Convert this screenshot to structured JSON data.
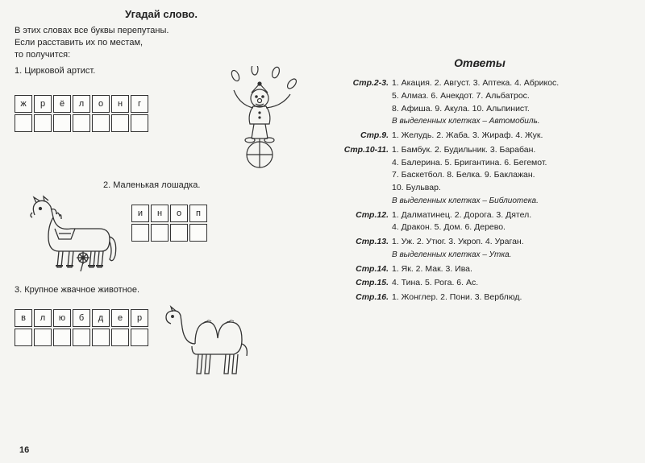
{
  "left": {
    "title": "Угадай слово.",
    "intro_line1": "В этих словах все буквы перепутаны.",
    "intro_line2": "Если расставить их по местам,",
    "intro_line3": "то получится:",
    "page_number": "16",
    "puzzles": [
      {
        "clue": "1. Цирковой артист.",
        "letters": [
          "ж",
          "р",
          "ё",
          "л",
          "о",
          "н",
          "г"
        ],
        "image": "juggler"
      },
      {
        "clue": "2. Маленькая лошадка.",
        "letters": [
          "и",
          "н",
          "о",
          "п"
        ],
        "image": "pony"
      },
      {
        "clue": "3. Крупное жвачное животное.",
        "letters": [
          "в",
          "л",
          "ю",
          "б",
          "д",
          "е",
          "р"
        ],
        "image": "camel"
      }
    ]
  },
  "right": {
    "title": "Ответы",
    "sections": [
      {
        "ref": "Стр.2-3.",
        "lines": [
          "1. Акация. 2. Август. 3. Аптека. 4. Абрикос.",
          "5. Алмаз. 6. Анекдот. 7. Альбатрос.",
          "8. Афиша. 9. Акула. 10. Альпинист."
        ],
        "highlight": "В выделенных клетках – Автомобиль."
      },
      {
        "ref": "Стр.9.",
        "lines": [
          "1. Желудь. 2. Жаба. 3. Жираф. 4. Жук."
        ]
      },
      {
        "ref": "Стр.10-11.",
        "lines": [
          "1. Бамбук. 2. Будильник. 3. Барабан.",
          "4. Балерина. 5. Бригантина. 6. Бегемот.",
          "7. Баскетбол. 8. Белка. 9. Баклажан.",
          "10. Бульвар."
        ],
        "highlight": "В выделенных клетках – Библиотека."
      },
      {
        "ref": "Стр.12.",
        "lines": [
          "1. Далматинец. 2. Дорога. 3. Дятел.",
          "4. Дракон. 5. Дом. 6. Дерево."
        ]
      },
      {
        "ref": "Стр.13.",
        "lines": [
          "1. Уж. 2. Утюг. 3. Укроп. 4. Ураган."
        ],
        "highlight": "В выделенных клетках – Утка."
      },
      {
        "ref": "Стр.14.",
        "lines": [
          "1. Як. 2. Мак. 3. Ива."
        ]
      },
      {
        "ref": "Стр.15.",
        "lines": [
          "4. Тина. 5. Рога. 6. Ас."
        ]
      },
      {
        "ref": "Стр.16.",
        "lines": [
          "1. Жонглер. 2. Пони. 3. Верблюд."
        ]
      }
    ]
  }
}
